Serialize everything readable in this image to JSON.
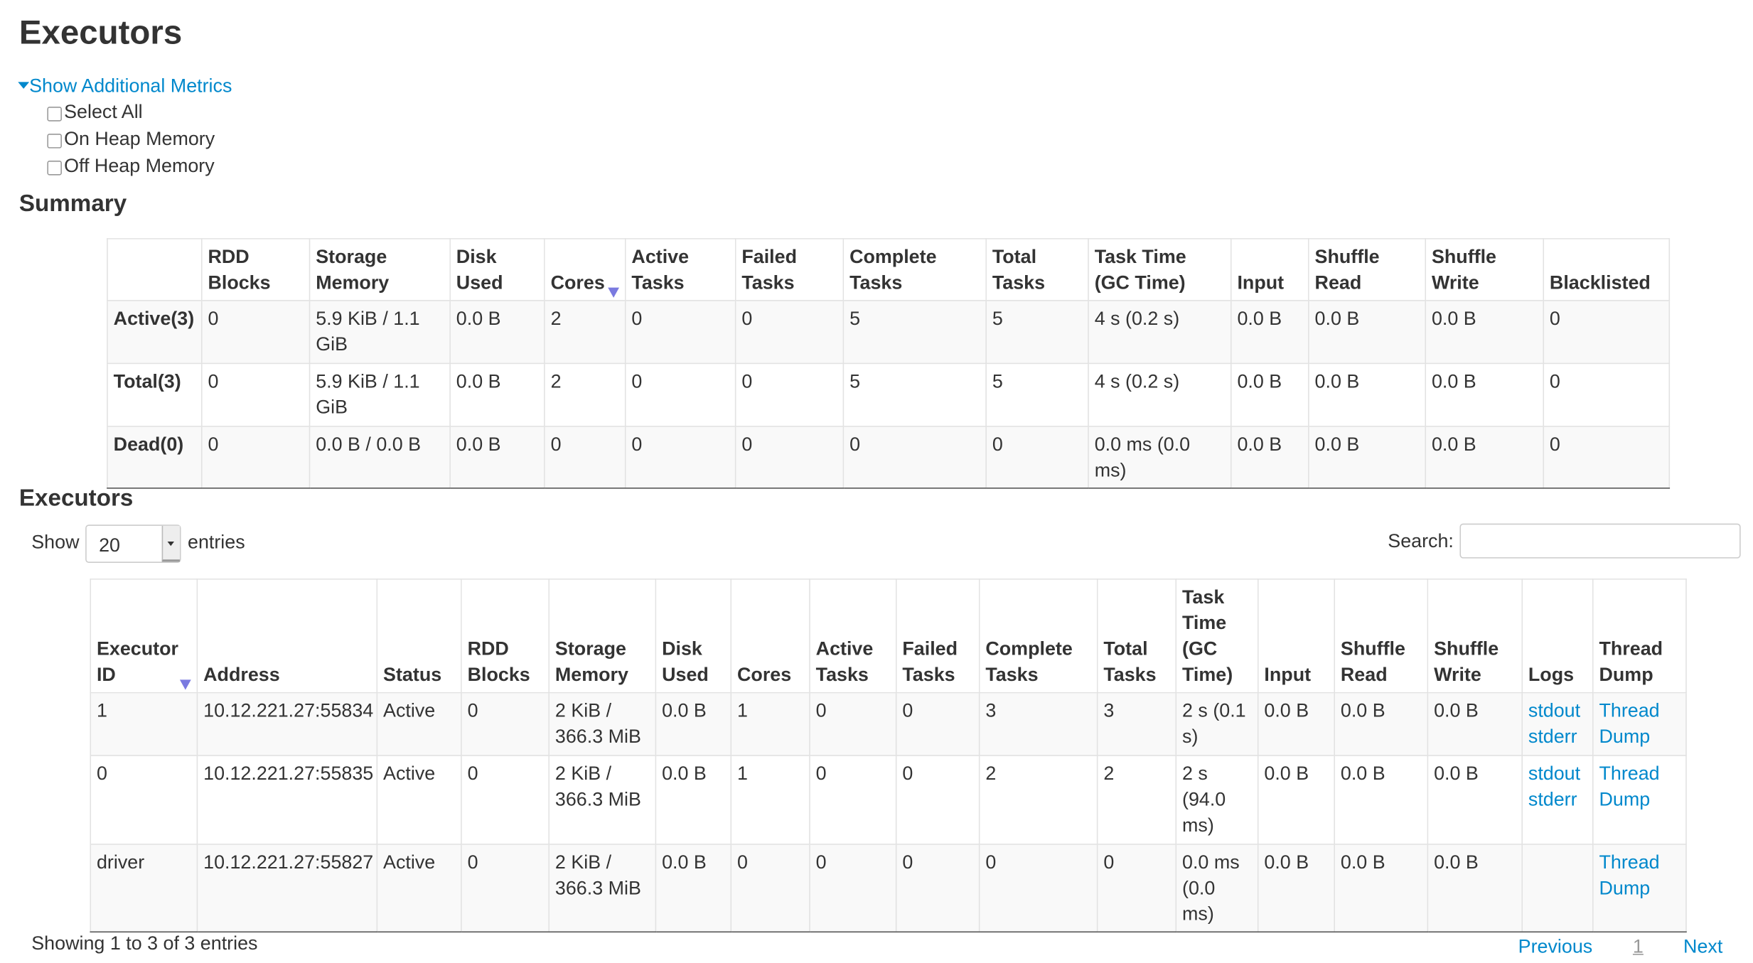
{
  "page_title": "Executors",
  "metrics_toggle": "Show Additional Metrics",
  "metric_options": [
    "Select All",
    "On Heap Memory",
    "Off Heap Memory"
  ],
  "summary": {
    "title": "Summary",
    "headers": [
      "",
      "RDD Blocks",
      "Storage Memory",
      "Disk Used",
      "Cores",
      "Active Tasks",
      "Failed Tasks",
      "Complete Tasks",
      "Total Tasks",
      "Task Time (GC Time)",
      "Input",
      "Shuffle Read",
      "Shuffle Write",
      "Blacklisted"
    ],
    "rows": [
      [
        "Active(3)",
        "0",
        "5.9 KiB / 1.1 GiB",
        "0.0 B",
        "2",
        "0",
        "0",
        "5",
        "5",
        "4 s (0.2 s)",
        "0.0 B",
        "0.0 B",
        "0.0 B",
        "0"
      ],
      [
        "Total(3)",
        "0",
        "5.9 KiB / 1.1 GiB",
        "0.0 B",
        "2",
        "0",
        "0",
        "5",
        "5",
        "4 s (0.2 s)",
        "0.0 B",
        "0.0 B",
        "0.0 B",
        "0"
      ],
      [
        "Dead(0)",
        "0",
        "0.0 B / 0.0 B",
        "0.0 B",
        "0",
        "0",
        "0",
        "0",
        "0",
        "0.0 ms (0.0 ms)",
        "0.0 B",
        "0.0 B",
        "0.0 B",
        "0"
      ]
    ]
  },
  "executors": {
    "title": "Executors",
    "show_label": "Show",
    "entries_value": "20",
    "entries_label": "entries",
    "search_label": "Search:",
    "search_value": "",
    "headers": [
      "Executor ID",
      "Address",
      "Status",
      "RDD Blocks",
      "Storage Memory",
      "Disk Used",
      "Cores",
      "Active Tasks",
      "Failed Tasks",
      "Complete Tasks",
      "Total Tasks",
      "Task Time (GC Time)",
      "Input",
      "Shuffle Read",
      "Shuffle Write",
      "Logs",
      "Thread Dump"
    ],
    "rows": [
      {
        "cells": [
          "1",
          "10.12.221.27:55834",
          "Active",
          "0",
          "2 KiB / 366.3 MiB",
          "0.0 B",
          "1",
          "0",
          "0",
          "3",
          "3",
          "2 s (0.1 s)",
          "0.0 B",
          "0.0 B",
          "0.0 B"
        ],
        "logs": [
          "stdout",
          "stderr"
        ],
        "thread_dump": "Thread Dump"
      },
      {
        "cells": [
          "0",
          "10.12.221.27:55835",
          "Active",
          "0",
          "2 KiB / 366.3 MiB",
          "0.0 B",
          "1",
          "0",
          "0",
          "2",
          "2",
          "2 s (94.0 ms)",
          "0.0 B",
          "0.0 B",
          "0.0 B"
        ],
        "logs": [
          "stdout",
          "stderr"
        ],
        "thread_dump": "Thread Dump"
      },
      {
        "cells": [
          "driver",
          "10.12.221.27:55827",
          "Active",
          "0",
          "2 KiB / 366.3 MiB",
          "0.0 B",
          "0",
          "0",
          "0",
          "0",
          "0",
          "0.0 ms (0.0 ms)",
          "0.0 B",
          "0.0 B",
          "0.0 B"
        ],
        "logs": [],
        "thread_dump": "Thread Dump"
      }
    ],
    "info": "Showing 1 to 3 of 3 entries",
    "pagination": {
      "previous": "Previous",
      "current": "1",
      "next": "Next"
    }
  },
  "colors": {
    "link": "#0088cc",
    "sort_indicator": "#7a7ae0",
    "text": "#333333"
  }
}
